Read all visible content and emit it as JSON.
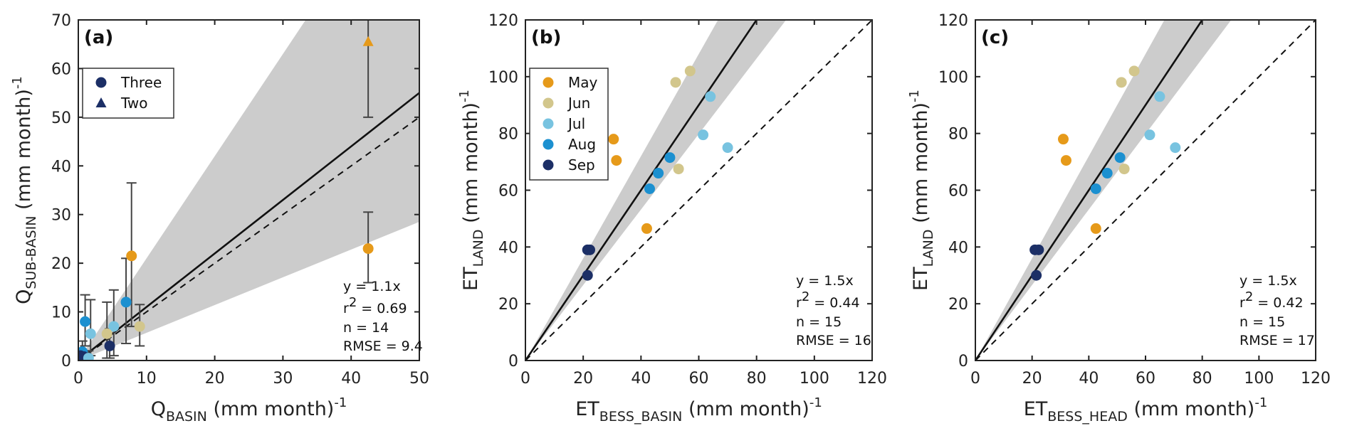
{
  "colors": {
    "May": "#e69a1a",
    "Jun": "#d2c68c",
    "Jul": "#78c3e0",
    "Aug": "#1c90d0",
    "Sep": "#1c2f66",
    "band": "#cccccc",
    "errorbar": "#444444"
  },
  "chart_data": [
    {
      "type": "scatter",
      "panel_label": "(a)",
      "xlabel_main": "Q",
      "xlabel_sub": "BASIN",
      "xlabel_unit": " (mm month)",
      "xlabel_sup": "-1",
      "ylabel_main": "Q",
      "ylabel_sub": "SUB-BASIN",
      "ylabel_unit": " (mm month)",
      "ylabel_sup": "-1",
      "xlim": [
        0,
        50
      ],
      "ylim": [
        0,
        70
      ],
      "xticks": [
        "0",
        "10",
        "20",
        "30",
        "40",
        "50"
      ],
      "yticks": [
        "0",
        "10",
        "20",
        "30",
        "40",
        "50",
        "60",
        "70"
      ],
      "fit": {
        "slope": 1.1,
        "band_low": 0.57,
        "band_high": 2.1
      },
      "one_to_one": true,
      "stats": {
        "eq": "y = 1.1x",
        "r2_prefix": "r",
        "r2_sup": "2",
        "r2_value": " = 0.69",
        "n": "n = 14",
        "rmse": "RMSE = 9.4"
      },
      "legend": [
        {
          "label": "Three",
          "marker": "circle"
        },
        {
          "label": "Two",
          "marker": "triangle"
        }
      ],
      "points": [
        {
          "x": 42.5,
          "y": 65.5,
          "month": "May",
          "marker": "triangle",
          "err_lo": 50,
          "err_hi": 70
        },
        {
          "x": 42.5,
          "y": 23,
          "month": "May",
          "marker": "circle",
          "err_lo": 16,
          "err_hi": 30.5
        },
        {
          "x": 7.8,
          "y": 21.5,
          "month": "May",
          "marker": "circle",
          "err_lo": 7,
          "err_hi": 36.5
        },
        {
          "x": 7,
          "y": 12,
          "month": "Aug",
          "marker": "circle",
          "err_lo": 3.5,
          "err_hi": 21
        },
        {
          "x": 1,
          "y": 8,
          "month": "Aug",
          "marker": "circle",
          "err_lo": 3,
          "err_hi": 13.5
        },
        {
          "x": 1.8,
          "y": 5.5,
          "month": "Jul",
          "marker": "circle",
          "err_lo": 1,
          "err_hi": 12.5
        },
        {
          "x": 5.2,
          "y": 7,
          "month": "Jul",
          "marker": "circle",
          "err_lo": 1,
          "err_hi": 14.5
        },
        {
          "x": 9,
          "y": 7,
          "month": "Jun",
          "marker": "circle",
          "err_lo": 3,
          "err_hi": 11.5
        },
        {
          "x": 4.2,
          "y": 5.5,
          "month": "Jun",
          "marker": "circle",
          "err_lo": 0.5,
          "err_hi": 12
        },
        {
          "x": 4.6,
          "y": 3,
          "month": "Sep",
          "marker": "circle",
          "err_lo": 0.5,
          "err_hi": 6.5
        },
        {
          "x": 0.6,
          "y": 1.8,
          "month": "Aug",
          "marker": "circle",
          "err_lo": 0,
          "err_hi": 4
        },
        {
          "x": 0.3,
          "y": 1,
          "month": "Sep",
          "marker": "circle",
          "err_lo": 0,
          "err_hi": 2.5
        },
        {
          "x": 0.8,
          "y": 0.8,
          "month": "Sep",
          "marker": "circle",
          "err_lo": 0,
          "err_hi": 2
        },
        {
          "x": 1.5,
          "y": 0.5,
          "month": "Jul",
          "marker": "circle",
          "err_lo": 0,
          "err_hi": 2
        }
      ]
    },
    {
      "type": "scatter",
      "panel_label": "(b)",
      "xlabel_main": "ET",
      "xlabel_sub": "BESS_BASIN",
      "xlabel_unit": " (mm month)",
      "xlabel_sup": "-1",
      "ylabel_main": "ET",
      "ylabel_sub": "LAND",
      "ylabel_unit": " (mm month)",
      "ylabel_sup": "-1",
      "xlim": [
        0,
        120
      ],
      "ylim": [
        0,
        120
      ],
      "xticks": [
        "0",
        "20",
        "40",
        "60",
        "80",
        "100",
        "120"
      ],
      "yticks": [
        "0",
        "20",
        "40",
        "60",
        "80",
        "100",
        "120"
      ],
      "fit": {
        "slope": 1.5,
        "band_low": 1.33,
        "band_high": 1.8
      },
      "one_to_one": true,
      "stats": {
        "eq": "y = 1.5x",
        "r2_prefix": "r",
        "r2_sup": "2",
        "r2_value": " = 0.44",
        "n": "n = 15",
        "rmse": "RMSE = 16"
      },
      "legend": [
        {
          "label": "May",
          "marker": "circle"
        },
        {
          "label": "Jun",
          "marker": "circle"
        },
        {
          "label": "Jul",
          "marker": "circle"
        },
        {
          "label": "Aug",
          "marker": "circle"
        },
        {
          "label": "Sep",
          "marker": "circle"
        }
      ],
      "points": [
        {
          "x": 30.5,
          "y": 78,
          "month": "May"
        },
        {
          "x": 31.5,
          "y": 70.5,
          "month": "May"
        },
        {
          "x": 42,
          "y": 46.5,
          "month": "May"
        },
        {
          "x": 52,
          "y": 98,
          "month": "Jun"
        },
        {
          "x": 57,
          "y": 102,
          "month": "Jun"
        },
        {
          "x": 53,
          "y": 67.5,
          "month": "Jun"
        },
        {
          "x": 64,
          "y": 93,
          "month": "Jul"
        },
        {
          "x": 61.5,
          "y": 79.5,
          "month": "Jul"
        },
        {
          "x": 70,
          "y": 75,
          "month": "Jul"
        },
        {
          "x": 50,
          "y": 71.5,
          "month": "Aug"
        },
        {
          "x": 46,
          "y": 66,
          "month": "Aug"
        },
        {
          "x": 43,
          "y": 60.5,
          "month": "Aug"
        },
        {
          "x": 21.5,
          "y": 39,
          "month": "Sep"
        },
        {
          "x": 22.3,
          "y": 39,
          "month": "Sep"
        },
        {
          "x": 21.5,
          "y": 30,
          "month": "Sep"
        }
      ]
    },
    {
      "type": "scatter",
      "panel_label": "(c)",
      "xlabel_main": "ET",
      "xlabel_sub": "BESS_HEAD",
      "xlabel_unit": " (mm month)",
      "xlabel_sup": "-1",
      "ylabel_main": "ET",
      "ylabel_sub": "LAND",
      "ylabel_unit": " (mm month)",
      "ylabel_sup": "-1",
      "xlim": [
        0,
        120
      ],
      "ylim": [
        0,
        120
      ],
      "xticks": [
        "0",
        "20",
        "40",
        "60",
        "80",
        "100",
        "120"
      ],
      "yticks": [
        "0",
        "20",
        "40",
        "60",
        "80",
        "100",
        "120"
      ],
      "fit": {
        "slope": 1.5,
        "band_low": 1.33,
        "band_high": 1.8
      },
      "one_to_one": true,
      "stats": {
        "eq": "y = 1.5x",
        "r2_prefix": "r",
        "r2_sup": "2",
        "r2_value": " = 0.42",
        "n": "n = 15",
        "rmse": "RMSE = 17"
      },
      "legend": [],
      "points": [
        {
          "x": 31,
          "y": 78,
          "month": "May"
        },
        {
          "x": 32,
          "y": 70.5,
          "month": "May"
        },
        {
          "x": 42.5,
          "y": 46.5,
          "month": "May"
        },
        {
          "x": 51.5,
          "y": 98,
          "month": "Jun"
        },
        {
          "x": 56,
          "y": 102,
          "month": "Jun"
        },
        {
          "x": 52.5,
          "y": 67.5,
          "month": "Jun"
        },
        {
          "x": 65,
          "y": 93,
          "month": "Jul"
        },
        {
          "x": 61.5,
          "y": 79.5,
          "month": "Jul"
        },
        {
          "x": 70.5,
          "y": 75,
          "month": "Jul"
        },
        {
          "x": 51,
          "y": 71.5,
          "month": "Aug"
        },
        {
          "x": 46.5,
          "y": 66,
          "month": "Aug"
        },
        {
          "x": 42.5,
          "y": 60.5,
          "month": "Aug"
        },
        {
          "x": 21,
          "y": 39,
          "month": "Sep"
        },
        {
          "x": 22.3,
          "y": 39,
          "month": "Sep"
        },
        {
          "x": 21.5,
          "y": 30,
          "month": "Sep"
        }
      ]
    }
  ]
}
